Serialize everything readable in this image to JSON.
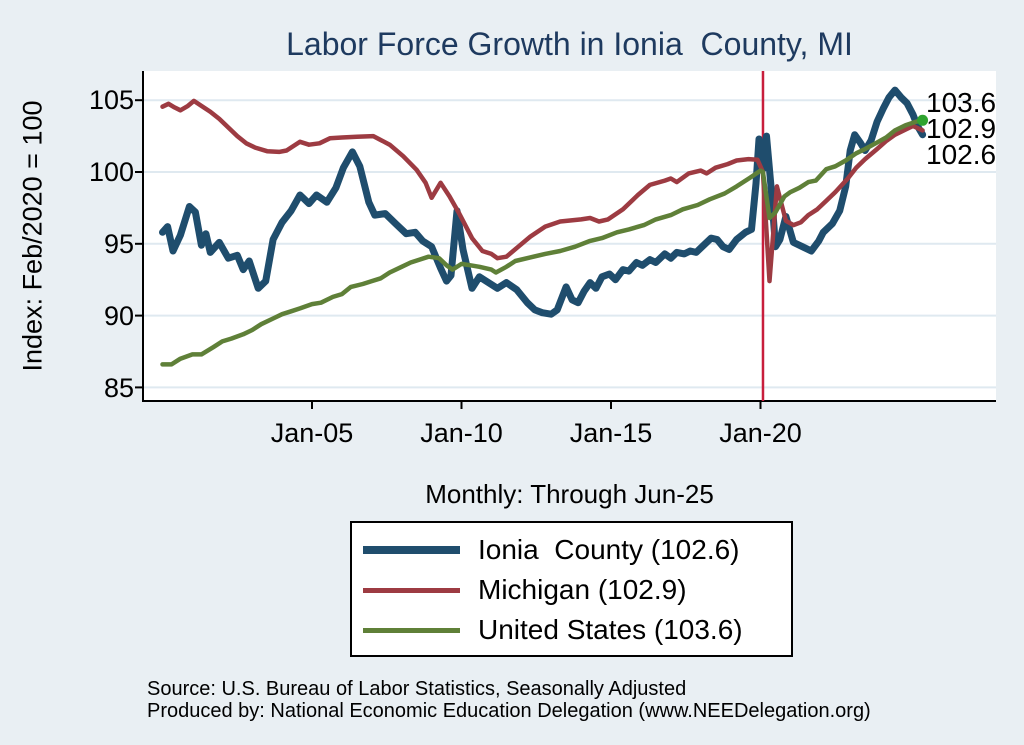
{
  "title": "Labor Force Growth in Ionia  County, MI",
  "subtitle": "Monthly: Through Jun-25",
  "source_line1": "Source: U.S. Bureau of Labor Statistics, Seasonally Adjusted",
  "source_line2": "Produced by: National Economic Education Delegation (www.NEEDelegation.org)",
  "colors": {
    "page_background": "#e9eff3",
    "plot_background": "#ffffff",
    "gridline": "#dfe9f0",
    "axis": "#000000",
    "title_text": "#1e3a5f",
    "reference_line": "#c81e3c",
    "ionia_blue": "#1f4d6d",
    "michigan_red": "#9d3b42",
    "us_green": "#5f8038",
    "end_marker_green": "#2fa32f"
  },
  "chart_data": {
    "type": "line",
    "title": "Labor Force Growth in Ionia  County, MI",
    "xlabel": "",
    "ylabel": "Index: Feb/2020 = 100",
    "note": "Monthly: Through Jun-25",
    "grid": true,
    "legend_position": "below",
    "ylim": [
      84.2,
      106.9
    ],
    "xlim_years": [
      1999.35,
      2027.9
    ],
    "y_ticks": [
      105,
      100,
      95,
      90,
      85
    ],
    "x_ticks": [
      {
        "label": "Jan-05",
        "t": 2005
      },
      {
        "label": "Jan-10",
        "t": 2010
      },
      {
        "label": "Jan-15",
        "t": 2015
      },
      {
        "label": "Jan-20",
        "t": 2020
      }
    ],
    "reference_line": {
      "t": 2020.083,
      "meaning": "Feb-2020",
      "color": "#c81e3c"
    },
    "end_labels": [
      "103.6",
      "102.9",
      "102.6"
    ],
    "series": [
      {
        "name": "Ionia County",
        "legend_label": "Ionia  County (102.6)",
        "color": "#1f4d6d",
        "stroke_width": 7,
        "last_value": 102.6,
        "points": [
          [
            2000.0,
            95.8
          ],
          [
            2000.17,
            96.2
          ],
          [
            2000.35,
            94.5
          ],
          [
            2000.6,
            95.6
          ],
          [
            2000.9,
            97.6
          ],
          [
            2001.1,
            97.2
          ],
          [
            2001.3,
            94.9
          ],
          [
            2001.45,
            95.7
          ],
          [
            2001.6,
            94.4
          ],
          [
            2001.9,
            95.1
          ],
          [
            2002.2,
            94.0
          ],
          [
            2002.5,
            94.2
          ],
          [
            2002.7,
            93.2
          ],
          [
            2002.9,
            93.8
          ],
          [
            2003.2,
            91.9
          ],
          [
            2003.45,
            92.4
          ],
          [
            2003.7,
            95.3
          ],
          [
            2004.0,
            96.5
          ],
          [
            2004.3,
            97.3
          ],
          [
            2004.6,
            98.4
          ],
          [
            2004.9,
            97.8
          ],
          [
            2005.15,
            98.4
          ],
          [
            2005.5,
            97.9
          ],
          [
            2005.8,
            98.9
          ],
          [
            2006.05,
            100.3
          ],
          [
            2006.35,
            101.4
          ],
          [
            2006.6,
            100.4
          ],
          [
            2006.9,
            97.9
          ],
          [
            2007.1,
            97.0
          ],
          [
            2007.45,
            97.1
          ],
          [
            2007.8,
            96.4
          ],
          [
            2008.15,
            95.7
          ],
          [
            2008.45,
            95.8
          ],
          [
            2008.7,
            95.2
          ],
          [
            2009.0,
            94.8
          ],
          [
            2009.3,
            93.3
          ],
          [
            2009.5,
            92.4
          ],
          [
            2009.65,
            92.8
          ],
          [
            2009.85,
            97.3
          ],
          [
            2010.05,
            94.6
          ],
          [
            2010.35,
            91.9
          ],
          [
            2010.6,
            92.7
          ],
          [
            2010.9,
            92.3
          ],
          [
            2011.2,
            91.9
          ],
          [
            2011.5,
            92.3
          ],
          [
            2011.85,
            91.8
          ],
          [
            2012.2,
            90.9
          ],
          [
            2012.45,
            90.4
          ],
          [
            2012.7,
            90.2
          ],
          [
            2013.0,
            90.1
          ],
          [
            2013.2,
            90.4
          ],
          [
            2013.5,
            92.0
          ],
          [
            2013.7,
            91.1
          ],
          [
            2013.9,
            90.9
          ],
          [
            2014.1,
            91.7
          ],
          [
            2014.3,
            92.3
          ],
          [
            2014.5,
            91.9
          ],
          [
            2014.7,
            92.7
          ],
          [
            2014.95,
            92.9
          ],
          [
            2015.15,
            92.5
          ],
          [
            2015.4,
            93.2
          ],
          [
            2015.6,
            93.1
          ],
          [
            2015.85,
            93.7
          ],
          [
            2016.05,
            93.5
          ],
          [
            2016.3,
            93.9
          ],
          [
            2016.5,
            93.7
          ],
          [
            2016.8,
            94.3
          ],
          [
            2017.0,
            94.0
          ],
          [
            2017.2,
            94.4
          ],
          [
            2017.45,
            94.3
          ],
          [
            2017.65,
            94.5
          ],
          [
            2017.85,
            94.4
          ],
          [
            2018.1,
            94.9
          ],
          [
            2018.35,
            95.4
          ],
          [
            2018.55,
            95.3
          ],
          [
            2018.75,
            94.8
          ],
          [
            2018.95,
            94.6
          ],
          [
            2019.2,
            95.3
          ],
          [
            2019.5,
            95.8
          ],
          [
            2019.7,
            96.0
          ],
          [
            2019.85,
            99.2
          ],
          [
            2019.95,
            102.3
          ],
          [
            2020.08,
            100.2
          ],
          [
            2020.2,
            102.5
          ],
          [
            2020.35,
            99.0
          ],
          [
            2020.5,
            94.8
          ],
          [
            2020.65,
            95.3
          ],
          [
            2020.85,
            96.9
          ],
          [
            2021.1,
            95.1
          ],
          [
            2021.4,
            94.8
          ],
          [
            2021.7,
            94.5
          ],
          [
            2021.95,
            95.2
          ],
          [
            2022.1,
            95.8
          ],
          [
            2022.4,
            96.4
          ],
          [
            2022.65,
            97.3
          ],
          [
            2022.85,
            99.0
          ],
          [
            2023.0,
            101.5
          ],
          [
            2023.15,
            102.6
          ],
          [
            2023.35,
            102.0
          ],
          [
            2023.5,
            101.5
          ],
          [
            2023.7,
            102.2
          ],
          [
            2023.9,
            103.5
          ],
          [
            2024.1,
            104.4
          ],
          [
            2024.3,
            105.2
          ],
          [
            2024.5,
            105.7
          ],
          [
            2024.7,
            105.2
          ],
          [
            2024.9,
            104.8
          ],
          [
            2025.1,
            104.0
          ],
          [
            2025.25,
            103.2
          ],
          [
            2025.42,
            102.6
          ]
        ]
      },
      {
        "name": "Michigan",
        "legend_label": "Michigan (102.9)",
        "color": "#9d3b42",
        "stroke_width": 4.5,
        "last_value": 102.9,
        "points": [
          [
            2000.0,
            104.55
          ],
          [
            2000.2,
            104.75
          ],
          [
            2000.4,
            104.5
          ],
          [
            2000.6,
            104.3
          ],
          [
            2000.85,
            104.6
          ],
          [
            2001.05,
            104.95
          ],
          [
            2001.3,
            104.6
          ],
          [
            2001.6,
            104.2
          ],
          [
            2001.9,
            103.7
          ],
          [
            2002.2,
            103.1
          ],
          [
            2002.5,
            102.5
          ],
          [
            2002.8,
            102.0
          ],
          [
            2003.1,
            101.7
          ],
          [
            2003.5,
            101.45
          ],
          [
            2003.9,
            101.4
          ],
          [
            2004.15,
            101.5
          ],
          [
            2004.6,
            102.1
          ],
          [
            2004.9,
            101.9
          ],
          [
            2005.25,
            102.0
          ],
          [
            2005.6,
            102.35
          ],
          [
            2006.0,
            102.4
          ],
          [
            2006.5,
            102.45
          ],
          [
            2007.05,
            102.5
          ],
          [
            2007.6,
            101.9
          ],
          [
            2008.05,
            101.1
          ],
          [
            2008.5,
            100.15
          ],
          [
            2008.8,
            99.25
          ],
          [
            2009.0,
            98.2
          ],
          [
            2009.3,
            99.25
          ],
          [
            2009.6,
            98.3
          ],
          [
            2009.9,
            97.2
          ],
          [
            2010.35,
            95.4
          ],
          [
            2010.7,
            94.5
          ],
          [
            2011.0,
            94.3
          ],
          [
            2011.2,
            94.0
          ],
          [
            2011.5,
            94.1
          ],
          [
            2011.9,
            94.8
          ],
          [
            2012.3,
            95.5
          ],
          [
            2012.8,
            96.2
          ],
          [
            2013.3,
            96.55
          ],
          [
            2014.0,
            96.7
          ],
          [
            2014.3,
            96.8
          ],
          [
            2014.6,
            96.55
          ],
          [
            2014.9,
            96.7
          ],
          [
            2015.4,
            97.4
          ],
          [
            2015.9,
            98.4
          ],
          [
            2016.3,
            99.1
          ],
          [
            2016.8,
            99.4
          ],
          [
            2017.0,
            99.55
          ],
          [
            2017.2,
            99.3
          ],
          [
            2017.6,
            99.9
          ],
          [
            2018.0,
            100.1
          ],
          [
            2018.2,
            99.9
          ],
          [
            2018.5,
            100.3
          ],
          [
            2018.9,
            100.55
          ],
          [
            2019.2,
            100.8
          ],
          [
            2019.6,
            100.9
          ],
          [
            2019.9,
            100.85
          ],
          [
            2020.08,
            100.0
          ],
          [
            2020.3,
            92.4
          ],
          [
            2020.55,
            99.0
          ],
          [
            2020.85,
            96.6
          ],
          [
            2021.1,
            96.3
          ],
          [
            2021.35,
            96.5
          ],
          [
            2021.6,
            97.0
          ],
          [
            2021.9,
            97.4
          ],
          [
            2022.2,
            98.0
          ],
          [
            2022.5,
            98.6
          ],
          [
            2022.9,
            99.5
          ],
          [
            2023.2,
            100.3
          ],
          [
            2023.5,
            100.9
          ],
          [
            2023.9,
            101.6
          ],
          [
            2024.2,
            102.15
          ],
          [
            2024.5,
            102.6
          ],
          [
            2024.9,
            103.0
          ],
          [
            2025.1,
            103.2
          ],
          [
            2025.42,
            102.9
          ]
        ]
      },
      {
        "name": "United States",
        "legend_label": "United States (103.6)",
        "color": "#5f8038",
        "stroke_width": 4.5,
        "last_value": 103.6,
        "end_marker_color": "#2fa32f",
        "points": [
          [
            2000.0,
            86.6
          ],
          [
            2000.3,
            86.6
          ],
          [
            2000.6,
            87.0
          ],
          [
            2001.0,
            87.3
          ],
          [
            2001.3,
            87.3
          ],
          [
            2001.7,
            87.8
          ],
          [
            2002.0,
            88.2
          ],
          [
            2002.3,
            88.4
          ],
          [
            2002.7,
            88.7
          ],
          [
            2003.0,
            89.0
          ],
          [
            2003.3,
            89.4
          ],
          [
            2003.7,
            89.8
          ],
          [
            2004.0,
            90.1
          ],
          [
            2004.3,
            90.3
          ],
          [
            2004.6,
            90.5
          ],
          [
            2005.0,
            90.8
          ],
          [
            2005.3,
            90.9
          ],
          [
            2005.7,
            91.3
          ],
          [
            2006.0,
            91.5
          ],
          [
            2006.3,
            92.0
          ],
          [
            2006.7,
            92.2
          ],
          [
            2007.0,
            92.4
          ],
          [
            2007.3,
            92.6
          ],
          [
            2007.6,
            93.0
          ],
          [
            2008.0,
            93.4
          ],
          [
            2008.3,
            93.7
          ],
          [
            2008.6,
            93.9
          ],
          [
            2008.9,
            94.1
          ],
          [
            2009.25,
            94.0
          ],
          [
            2009.5,
            93.5
          ],
          [
            2009.7,
            93.2
          ],
          [
            2010.0,
            93.6
          ],
          [
            2010.3,
            93.5
          ],
          [
            2010.6,
            93.4
          ],
          [
            2011.0,
            93.2
          ],
          [
            2011.15,
            93.0
          ],
          [
            2011.5,
            93.4
          ],
          [
            2011.8,
            93.8
          ],
          [
            2012.3,
            94.05
          ],
          [
            2012.8,
            94.3
          ],
          [
            2013.3,
            94.5
          ],
          [
            2013.8,
            94.8
          ],
          [
            2014.3,
            95.2
          ],
          [
            2014.7,
            95.4
          ],
          [
            2015.2,
            95.8
          ],
          [
            2015.6,
            96.0
          ],
          [
            2016.1,
            96.3
          ],
          [
            2016.5,
            96.7
          ],
          [
            2017.0,
            97.0
          ],
          [
            2017.4,
            97.4
          ],
          [
            2017.9,
            97.7
          ],
          [
            2018.3,
            98.1
          ],
          [
            2018.8,
            98.5
          ],
          [
            2019.2,
            99.0
          ],
          [
            2019.65,
            99.6
          ],
          [
            2020.0,
            100.1
          ],
          [
            2020.08,
            100.0
          ],
          [
            2020.3,
            96.8
          ],
          [
            2020.5,
            97.2
          ],
          [
            2020.8,
            98.3
          ],
          [
            2021.0,
            98.6
          ],
          [
            2021.3,
            98.9
          ],
          [
            2021.6,
            99.3
          ],
          [
            2021.85,
            99.4
          ],
          [
            2022.2,
            100.2
          ],
          [
            2022.5,
            100.4
          ],
          [
            2022.85,
            100.8
          ],
          [
            2023.2,
            101.3
          ],
          [
            2023.5,
            101.6
          ],
          [
            2023.85,
            102.0
          ],
          [
            2024.2,
            102.4
          ],
          [
            2024.5,
            102.9
          ],
          [
            2024.85,
            103.25
          ],
          [
            2025.2,
            103.5
          ],
          [
            2025.42,
            103.6
          ]
        ]
      }
    ]
  }
}
